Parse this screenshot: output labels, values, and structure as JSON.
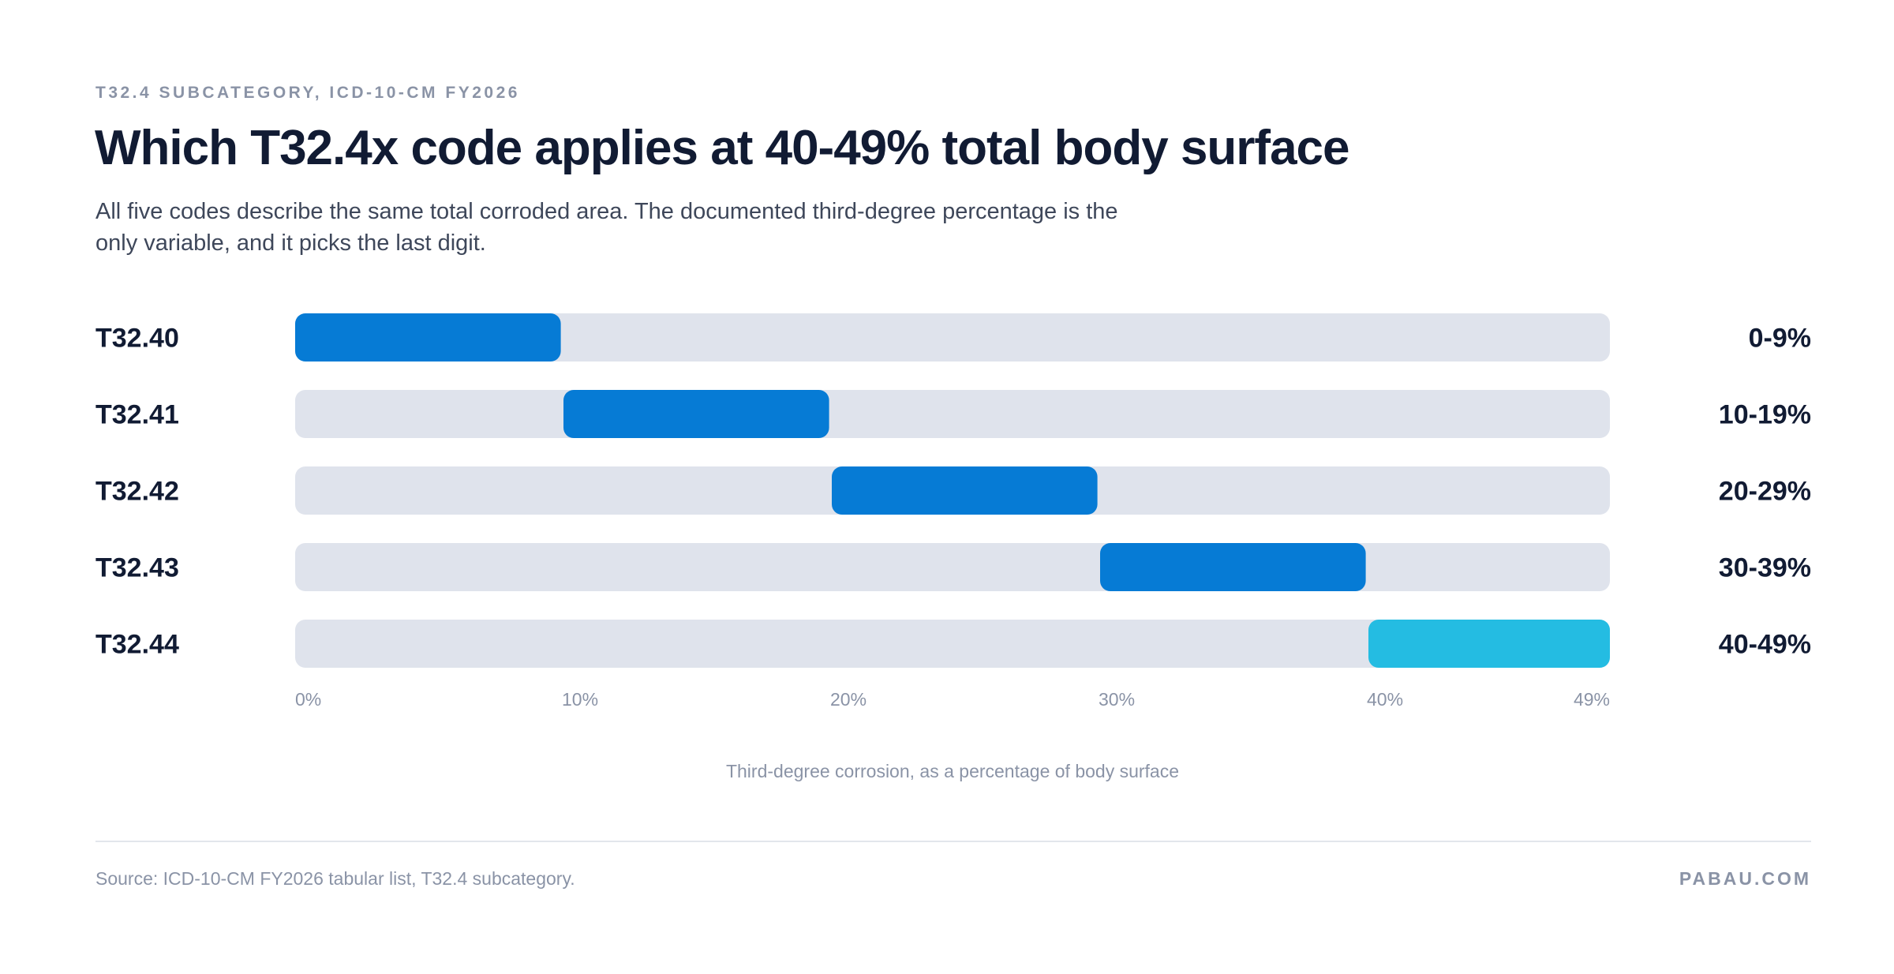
{
  "header": {
    "eyebrow": "T32.4 SUBCATEGORY, ICD-10-CM FY2026",
    "title": "Which T32.4x code applies at 40-49% total body surface",
    "subtitle": "All five codes describe the same total corroded area. The documented third-degree percentage is the only variable, and it picks the last digit."
  },
  "chart_data": {
    "type": "bar",
    "orientation": "horizontal-range",
    "xlabel": "Third-degree corrosion, as a percentage of body surface",
    "xlim": [
      0,
      49
    ],
    "ticks": [
      {
        "value": 0,
        "label": "0%"
      },
      {
        "value": 10,
        "label": "10%"
      },
      {
        "value": 20,
        "label": "20%"
      },
      {
        "value": 30,
        "label": "30%"
      },
      {
        "value": 40,
        "label": "40%"
      },
      {
        "value": 49,
        "label": "49%"
      }
    ],
    "categories": [
      "T32.40",
      "T32.41",
      "T32.42",
      "T32.43",
      "T32.44"
    ],
    "ranges": [
      {
        "code": "T32.40",
        "start": 0,
        "end": 9,
        "label": "0-9%"
      },
      {
        "code": "T32.41",
        "start": 10,
        "end": 19,
        "label": "10-19%"
      },
      {
        "code": "T32.42",
        "start": 20,
        "end": 29,
        "label": "20-29%"
      },
      {
        "code": "T32.43",
        "start": 30,
        "end": 39,
        "label": "30-39%"
      },
      {
        "code": "T32.44",
        "start": 40,
        "end": 49,
        "label": "40-49%",
        "highlight": true
      }
    ],
    "colors": {
      "track": "#dfe3ec",
      "bar": "#067bd5",
      "highlight": "#24bce2"
    },
    "grid": false,
    "legend": "none"
  },
  "footer": {
    "source": "Source: ICD-10-CM FY2026 tabular list, T32.4 subcategory.",
    "brand": "PABAU.COM"
  }
}
